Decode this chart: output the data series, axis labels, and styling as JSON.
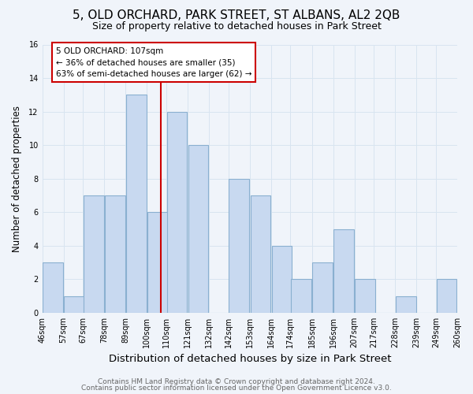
{
  "title": "5, OLD ORCHARD, PARK STREET, ST ALBANS, AL2 2QB",
  "subtitle": "Size of property relative to detached houses in Park Street",
  "xlabel": "Distribution of detached houses by size in Park Street",
  "ylabel": "Number of detached properties",
  "bar_left_edges": [
    46,
    57,
    67,
    78,
    89,
    100,
    110,
    121,
    132,
    142,
    153,
    164,
    174,
    185,
    196,
    207,
    217,
    228,
    239,
    249
  ],
  "bar_heights": [
    3,
    1,
    7,
    7,
    13,
    6,
    12,
    10,
    0,
    8,
    7,
    4,
    2,
    3,
    5,
    2,
    0,
    1,
    0,
    2
  ],
  "bin_width": 11,
  "tick_labels": [
    "46sqm",
    "57sqm",
    "67sqm",
    "78sqm",
    "89sqm",
    "100sqm",
    "110sqm",
    "121sqm",
    "132sqm",
    "142sqm",
    "153sqm",
    "164sqm",
    "174sqm",
    "185sqm",
    "196sqm",
    "207sqm",
    "217sqm",
    "228sqm",
    "239sqm",
    "249sqm",
    "260sqm"
  ],
  "bar_color": "#c8d9f0",
  "bar_edge_color": "#8ab0d0",
  "vline_x": 107,
  "vline_color": "#cc0000",
  "annotation_title": "5 OLD ORCHARD: 107sqm",
  "annotation_line1": "← 36% of detached houses are smaller (35)",
  "annotation_line2": "63% of semi-detached houses are larger (62) →",
  "annotation_box_color": "#ffffff",
  "annotation_box_edge": "#cc0000",
  "ylim": [
    0,
    16
  ],
  "yticks": [
    0,
    2,
    4,
    6,
    8,
    10,
    12,
    14,
    16
  ],
  "grid_color": "#d8e4f0",
  "footer1": "Contains HM Land Registry data © Crown copyright and database right 2024.",
  "footer2": "Contains public sector information licensed under the Open Government Licence v3.0.",
  "bg_color": "#f0f4fa",
  "title_fontsize": 11,
  "subtitle_fontsize": 9,
  "xlabel_fontsize": 9.5,
  "ylabel_fontsize": 8.5,
  "tick_fontsize": 7,
  "footer_fontsize": 6.5
}
